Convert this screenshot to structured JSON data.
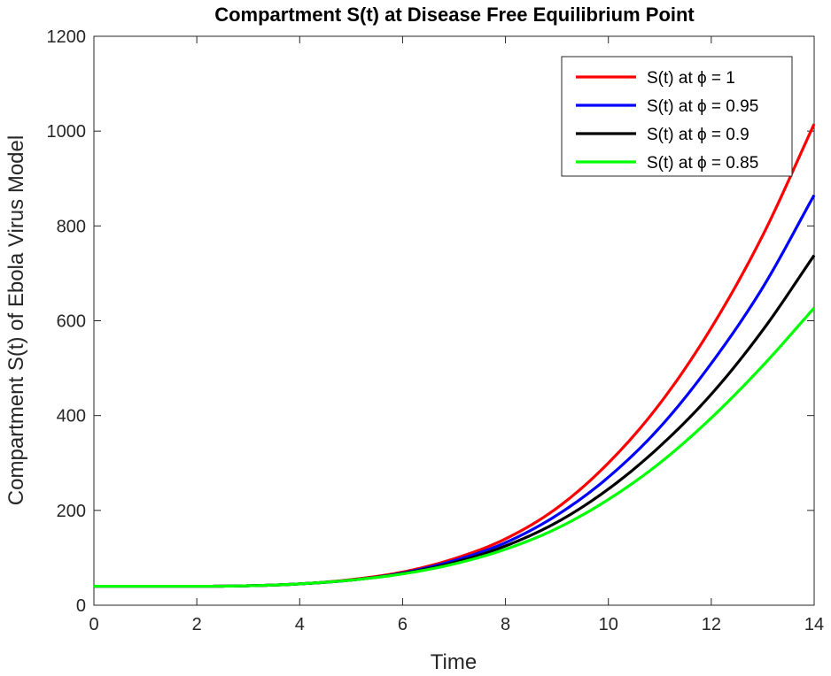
{
  "chart_data": {
    "type": "line",
    "title": "Compartment S(t) at Disease Free Equilibrium Point",
    "xlabel": "Time",
    "ylabel": "Compartment S(t) of Ebola Virus Model",
    "xlim": [
      0,
      14
    ],
    "ylim": [
      0,
      1200
    ],
    "xticks": [
      0,
      2,
      4,
      6,
      8,
      10,
      12,
      14
    ],
    "yticks": [
      0,
      200,
      400,
      600,
      800,
      1000,
      1200
    ],
    "grid": false,
    "legend_position": "top-right",
    "x": [
      0,
      1,
      2,
      3,
      4,
      5,
      6,
      7,
      8,
      9,
      10,
      11,
      12,
      13,
      14
    ],
    "series": [
      {
        "name": "S(t) at ϕ = 1",
        "color": "#ff0000",
        "values": [
          40,
          40,
          40,
          41,
          45,
          54,
          70,
          98,
          140,
          205,
          300,
          425,
          585,
          780,
          1015
        ]
      },
      {
        "name": "S(t) at ϕ = 0.95",
        "color": "#0000ff",
        "values": [
          40,
          40,
          40,
          41,
          45,
          53,
          68,
          94,
          132,
          190,
          270,
          375,
          510,
          670,
          865
        ]
      },
      {
        "name": "S(t) at ϕ = 0.9",
        "color": "#000000",
        "values": [
          40,
          40,
          40,
          41,
          45,
          53,
          67,
          90,
          125,
          175,
          245,
          335,
          445,
          580,
          738
        ]
      },
      {
        "name": "S(t) at ϕ = 0.85",
        "color": "#00ff00",
        "values": [
          40,
          40,
          40,
          41,
          45,
          53,
          66,
          87,
          118,
          162,
          223,
          300,
          395,
          505,
          627
        ]
      }
    ]
  }
}
